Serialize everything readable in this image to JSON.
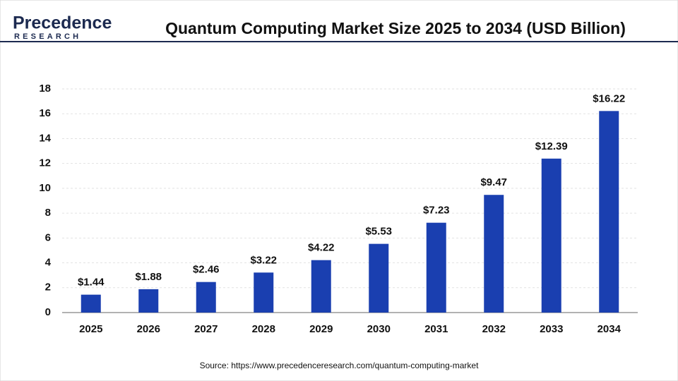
{
  "logo": {
    "name": "Precedence",
    "tagline": "RESEARCH"
  },
  "chart_data": {
    "type": "bar",
    "title": "Quantum Computing Market Size 2025 to 2034 (USD Billion)",
    "categories": [
      "2025",
      "2026",
      "2027",
      "2028",
      "2029",
      "2030",
      "2031",
      "2032",
      "2033",
      "2034"
    ],
    "values": [
      1.44,
      1.88,
      2.46,
      3.22,
      4.22,
      5.53,
      7.23,
      9.47,
      12.39,
      16.22
    ],
    "value_labels": [
      "$1.44",
      "$1.88",
      "$2.46",
      "$3.22",
      "$4.22",
      "$5.53",
      "$7.23",
      "$9.47",
      "$12.39",
      "$16.22"
    ],
    "color": "#1a3fb0",
    "ylim": [
      0,
      18
    ],
    "yticks": [
      0,
      2,
      4,
      6,
      8,
      10,
      12,
      14,
      16,
      18
    ],
    "grid": true,
    "source": "Source: https://www.precedenceresearch.com/quantum-computing-market"
  }
}
